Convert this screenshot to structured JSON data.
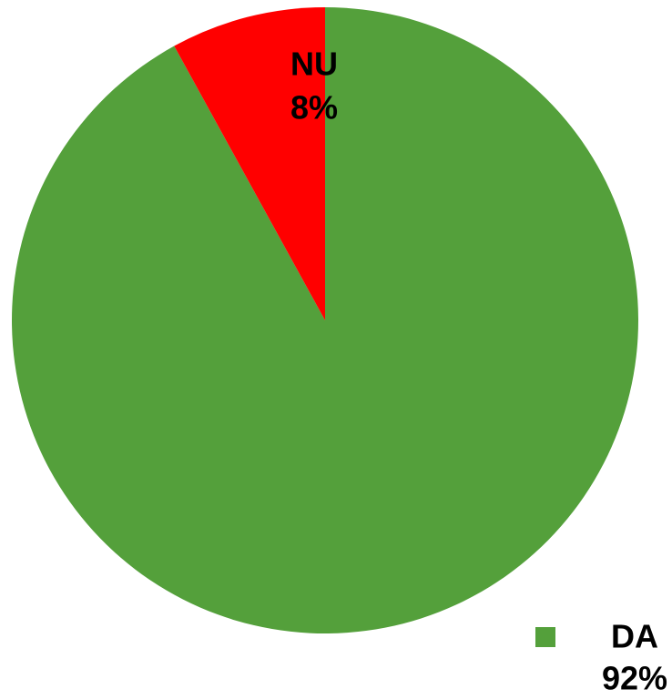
{
  "chart_data": {
    "type": "pie",
    "categories": [
      "DA",
      "NU"
    ],
    "values": [
      92,
      8
    ],
    "value_labels": [
      "92%",
      "8%"
    ],
    "colors": [
      "#54a03b",
      "#ff0000"
    ]
  }
}
